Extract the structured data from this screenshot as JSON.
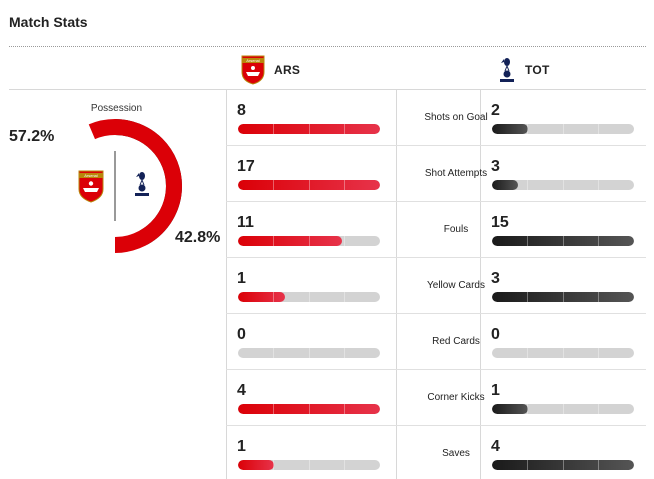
{
  "header": {
    "title": "Match Stats"
  },
  "teams": {
    "home": {
      "abbr": "ARS",
      "crest_text": "Arsenal",
      "color": "#db0007"
    },
    "away": {
      "abbr": "TOT",
      "color": "#111111"
    }
  },
  "possession": {
    "label": "Possession",
    "home_pct": "57.2%",
    "away_pct": "42.8%",
    "home_value": 57.2,
    "away_value": 42.8
  },
  "stats": [
    {
      "label": "Shots on Goal",
      "home": "8",
      "away": "2",
      "home_fill": 1.0,
      "away_fill": 0.25
    },
    {
      "label": "Shot Attempts",
      "home": "17",
      "away": "3",
      "home_fill": 1.0,
      "away_fill": 0.18
    },
    {
      "label": "Fouls",
      "home": "11",
      "away": "15",
      "home_fill": 0.73,
      "away_fill": 1.0
    },
    {
      "label": "Yellow Cards",
      "home": "1",
      "away": "3",
      "home_fill": 0.33,
      "away_fill": 1.0
    },
    {
      "label": "Red Cards",
      "home": "0",
      "away": "0",
      "home_fill": 0.0,
      "away_fill": 0.0
    },
    {
      "label": "Corner Kicks",
      "home": "4",
      "away": "1",
      "home_fill": 1.0,
      "away_fill": 0.25
    },
    {
      "label": "Saves",
      "home": "1",
      "away": "4",
      "home_fill": 0.25,
      "away_fill": 1.0
    }
  ]
}
